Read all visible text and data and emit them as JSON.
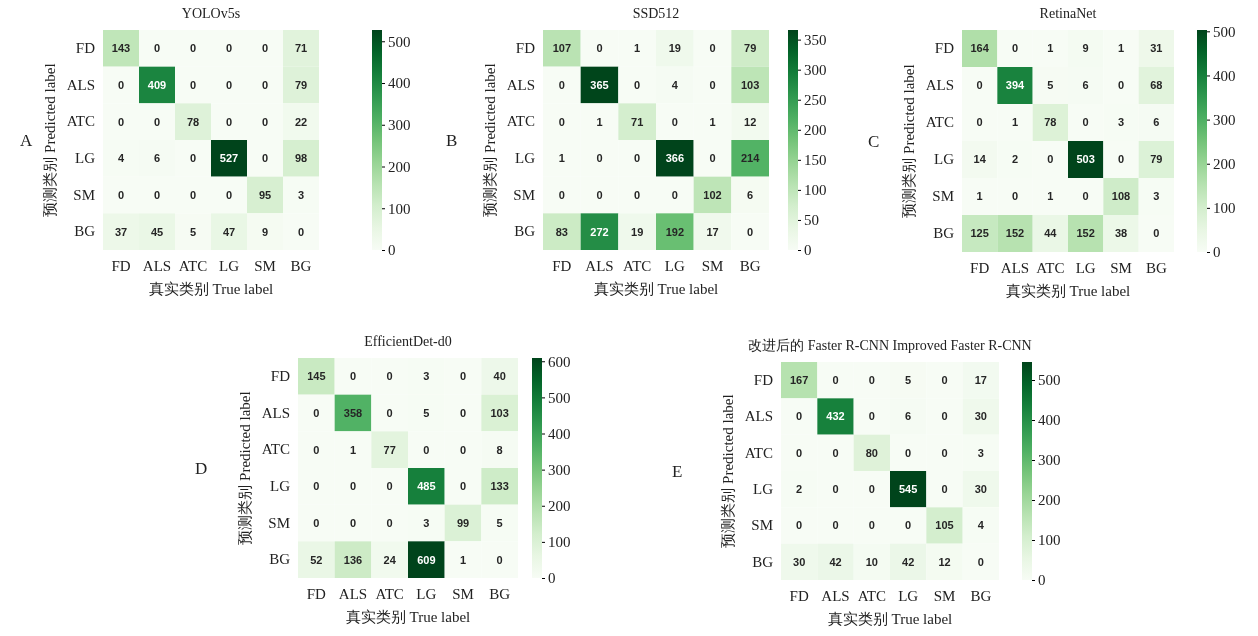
{
  "chart_data": [
    {
      "type": "heatmap",
      "title": "YOLOv5s",
      "xlabel": "真实类别  True label",
      "ylabel": "预测类别 Predicted label",
      "annotations": [
        "A"
      ],
      "categories": [
        "FD",
        "ALS",
        "ATC",
        "LG",
        "SM",
        "BG"
      ],
      "y_categories": [
        "FD",
        "ALS",
        "ATC",
        "LG",
        "SM",
        "BG"
      ],
      "cells": [
        [
          143,
          0,
          0,
          0,
          0,
          71
        ],
        [
          0,
          409,
          0,
          0,
          0,
          79
        ],
        [
          0,
          0,
          78,
          0,
          0,
          22
        ],
        [
          4,
          6,
          0,
          527,
          0,
          98
        ],
        [
          0,
          0,
          0,
          0,
          95,
          3
        ],
        [
          37,
          45,
          5,
          47,
          9,
          0
        ]
      ],
      "clim": [
        0,
        527
      ],
      "cticks": [
        0,
        100,
        200,
        300,
        400,
        500
      ],
      "data_labels": true
    },
    {
      "type": "heatmap",
      "title": "SSD512",
      "xlabel": "真实类别  True label",
      "ylabel": "预测类别 Predicted label",
      "annotations": [
        "B"
      ],
      "categories": [
        "FD",
        "ALS",
        "ATC",
        "LG",
        "SM",
        "BG"
      ],
      "y_categories": [
        "FD",
        "ALS",
        "ATC",
        "LG",
        "SM",
        "BG"
      ],
      "cells": [
        [
          107,
          0,
          1,
          19,
          0,
          79
        ],
        [
          0,
          365,
          0,
          4,
          0,
          103
        ],
        [
          0,
          1,
          71,
          0,
          1,
          12
        ],
        [
          1,
          0,
          0,
          366,
          0,
          214
        ],
        [
          0,
          0,
          0,
          0,
          102,
          6
        ],
        [
          83,
          272,
          19,
          192,
          17,
          0
        ]
      ],
      "clim": [
        0,
        366
      ],
      "cticks": [
        0,
        50,
        100,
        150,
        200,
        250,
        300,
        350
      ],
      "data_labels": true
    },
    {
      "type": "heatmap",
      "title": "RetinaNet",
      "xlabel": "真实类别  True label",
      "ylabel": "预测类别 Predicted label",
      "annotations": [
        "C"
      ],
      "categories": [
        "FD",
        "ALS",
        "ATC",
        "LG",
        "SM",
        "BG"
      ],
      "y_categories": [
        "FD",
        "ALS",
        "ATC",
        "LG",
        "SM",
        "BG"
      ],
      "cells": [
        [
          164,
          0,
          1,
          9,
          1,
          31
        ],
        [
          0,
          394,
          5,
          6,
          0,
          68
        ],
        [
          0,
          1,
          78,
          0,
          3,
          6
        ],
        [
          14,
          2,
          0,
          503,
          0,
          79
        ],
        [
          1,
          0,
          1,
          0,
          108,
          3
        ],
        [
          125,
          152,
          44,
          152,
          38,
          0
        ]
      ],
      "clim": [
        0,
        503
      ],
      "cticks": [
        0,
        100,
        200,
        300,
        400,
        500
      ],
      "data_labels": true
    },
    {
      "type": "heatmap",
      "title": "EfficientDet-d0",
      "xlabel": "真实类别  True label",
      "ylabel": "预测类别 Predicted label",
      "annotations": [
        "D"
      ],
      "categories": [
        "FD",
        "ALS",
        "ATC",
        "LG",
        "SM",
        "BG"
      ],
      "y_categories": [
        "FD",
        "ALS",
        "ATC",
        "LG",
        "SM",
        "BG"
      ],
      "cells": [
        [
          145,
          0,
          0,
          3,
          0,
          40
        ],
        [
          0,
          358,
          0,
          5,
          0,
          103
        ],
        [
          0,
          1,
          77,
          0,
          0,
          8
        ],
        [
          0,
          0,
          0,
          485,
          0,
          133
        ],
        [
          0,
          0,
          0,
          3,
          99,
          5
        ],
        [
          52,
          136,
          24,
          609,
          1,
          0
        ]
      ],
      "clim": [
        0,
        609
      ],
      "cticks": [
        0,
        100,
        200,
        300,
        400,
        500,
        600
      ],
      "data_labels": true
    },
    {
      "type": "heatmap",
      "title": "改进后的 Faster R-CNN  Improved Faster R-CNN",
      "xlabel": "真实类别  True label",
      "ylabel": "预测类别 Predicted label",
      "annotations": [
        "E"
      ],
      "categories": [
        "FD",
        "ALS",
        "ATC",
        "LG",
        "SM",
        "BG"
      ],
      "y_categories": [
        "FD",
        "ALS",
        "ATC",
        "LG",
        "SM",
        "BG"
      ],
      "cells": [
        [
          167,
          0,
          0,
          5,
          0,
          17
        ],
        [
          0,
          432,
          0,
          6,
          0,
          30
        ],
        [
          0,
          0,
          80,
          0,
          0,
          3
        ],
        [
          2,
          0,
          0,
          545,
          0,
          30
        ],
        [
          0,
          0,
          0,
          0,
          105,
          4
        ],
        [
          30,
          42,
          10,
          42,
          12,
          0
        ]
      ],
      "clim": [
        0,
        545
      ],
      "cticks": [
        0,
        100,
        200,
        300,
        400,
        500
      ],
      "data_labels": true
    }
  ]
}
